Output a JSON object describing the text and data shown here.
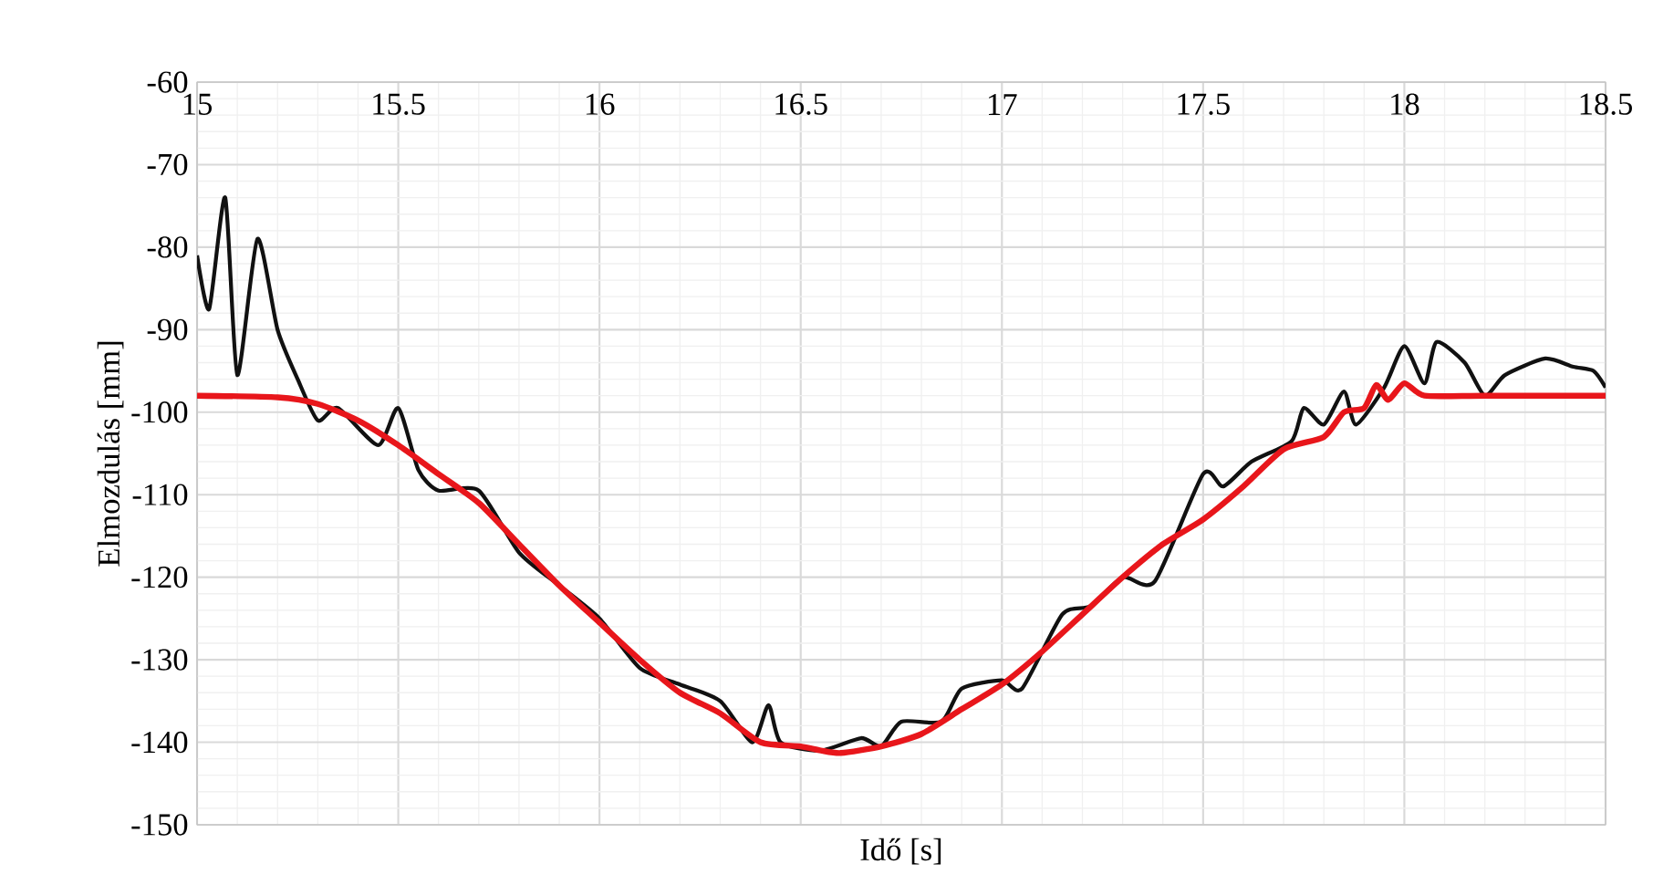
{
  "chart_data": {
    "type": "line",
    "xlabel": "Idő [s]",
    "ylabel": "Elmozdulás [mm]",
    "xlim": [
      15,
      18.5
    ],
    "ylim": [
      -150,
      -60
    ],
    "xticks": [
      15,
      15.5,
      16,
      16.5,
      17,
      17.5,
      18,
      18.5
    ],
    "yticks": [
      -150,
      -140,
      -130,
      -120,
      -110,
      -100,
      -90,
      -80,
      -70,
      -60
    ],
    "grid": true,
    "line_style": "solid",
    "series": [
      {
        "color": "#111111",
        "x": [
          15.0,
          15.03,
          15.07,
          15.1,
          15.15,
          15.2,
          15.25,
          15.3,
          15.35,
          15.45,
          15.5,
          15.55,
          15.6,
          15.7,
          15.8,
          15.9,
          16.0,
          16.1,
          16.2,
          16.3,
          16.38,
          16.42,
          16.45,
          16.55,
          16.65,
          16.7,
          16.75,
          16.85,
          16.9,
          17.0,
          17.05,
          17.15,
          17.22,
          17.3,
          17.38,
          17.5,
          17.55,
          17.62,
          17.72,
          17.75,
          17.8,
          17.85,
          17.88,
          17.95,
          18.0,
          18.05,
          18.08,
          18.15,
          18.2,
          18.25,
          18.35,
          18.42,
          18.47,
          18.5
        ],
        "values": [
          -81,
          -87.5,
          -74,
          -95.5,
          -79,
          -90,
          -96,
          -101,
          -99.5,
          -104,
          -99.5,
          -107,
          -109.5,
          -109.5,
          -117,
          -121,
          -125,
          -131,
          -133,
          -135,
          -140,
          -135.5,
          -140,
          -141,
          -139.5,
          -140.5,
          -137.5,
          -137.5,
          -133.5,
          -132.5,
          -133.5,
          -124.5,
          -123.5,
          -120,
          -120.5,
          -107.5,
          -109,
          -106,
          -103.5,
          -99.5,
          -101.5,
          -97.5,
          -101.5,
          -97,
          -92,
          -96.5,
          -91.5,
          -94,
          -98,
          -95.5,
          -93.5,
          -94.5,
          -95,
          -97
        ]
      },
      {
        "color": "#e8161b",
        "x": [
          15.0,
          15.2,
          15.3,
          15.4,
          15.5,
          15.6,
          15.7,
          15.8,
          15.9,
          16.0,
          16.1,
          16.2,
          16.3,
          16.4,
          16.5,
          16.55,
          16.6,
          16.7,
          16.8,
          16.9,
          17.0,
          17.1,
          17.2,
          17.3,
          17.4,
          17.5,
          17.6,
          17.7,
          17.8,
          17.85,
          17.9,
          17.93,
          17.96,
          18.0,
          18.05,
          18.2,
          18.5
        ],
        "values": [
          -98,
          -98.2,
          -99,
          -101,
          -104,
          -107.5,
          -111,
          -116,
          -121,
          -125.5,
          -130,
          -134,
          -136.5,
          -140,
          -140.5,
          -141,
          -141.3,
          -140.5,
          -139,
          -136,
          -133,
          -129,
          -124.5,
          -120,
          -116,
          -113,
          -109,
          -104.5,
          -103,
          -100,
          -99.5,
          -96.7,
          -98.5,
          -96.5,
          -98,
          -98,
          -98
        ]
      }
    ]
  }
}
